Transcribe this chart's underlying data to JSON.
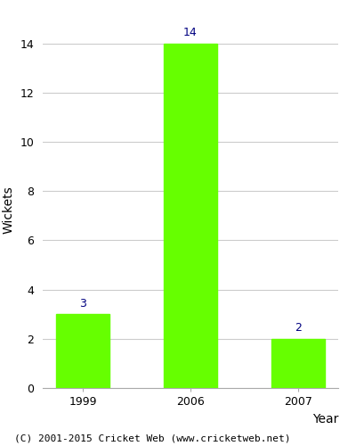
{
  "categories": [
    "1999",
    "2006",
    "2007"
  ],
  "values": [
    3,
    14,
    2
  ],
  "bar_color": "#66ff00",
  "bar_width": 0.5,
  "xlabel": "Year",
  "ylabel": "Wickets",
  "ylim": [
    0,
    14.5
  ],
  "yticks": [
    0,
    2,
    4,
    6,
    8,
    10,
    12,
    14
  ],
  "label_color": "#000080",
  "label_fontsize": 9,
  "axis_label_fontsize": 10,
  "tick_fontsize": 9,
  "footer": "(C) 2001-2015 Cricket Web (www.cricketweb.net)",
  "footer_fontsize": 8,
  "background_color": "#ffffff",
  "grid_color": "#cccccc",
  "spine_color": "#aaaaaa"
}
